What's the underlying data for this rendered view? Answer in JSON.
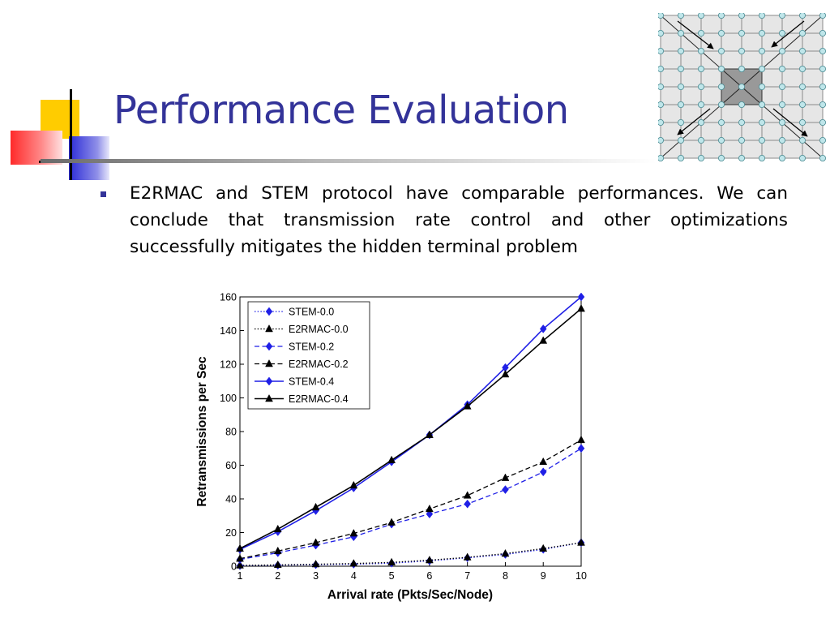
{
  "slide": {
    "title": "Performance Evaluation",
    "bullets": [
      "E2RMAC and STEM protocol have comparable performances. We can conclude that transmission rate control and other optimizations successfully mitigates the hidden terminal problem"
    ]
  },
  "colors": {
    "title": "#333399",
    "bullet": "#333399",
    "deco_yellow": "#FFCC00",
    "deco_red": "#FF3333",
    "deco_blue": "#3333CC",
    "series_blue": "#1f1fe6",
    "series_black": "#000000"
  },
  "grid_figure": {
    "description_icon": "network-grid-diagram-icon",
    "rows": 9,
    "cols": 9
  },
  "chart_data": {
    "type": "line",
    "xlabel": "Arrival rate (Pkts/Sec/Node)",
    "ylabel": "Retransmissions per Sec",
    "x": [
      1,
      2,
      3,
      4,
      5,
      6,
      7,
      8,
      9,
      10
    ],
    "xlim": [
      1,
      10
    ],
    "ylim": [
      0,
      160
    ],
    "yticks": [
      0,
      20,
      40,
      60,
      80,
      100,
      120,
      140,
      160
    ],
    "grid": false,
    "legend_position": "top-left",
    "series": [
      {
        "name": "STEM-0.0",
        "color": "#1f1fe6",
        "dash": "dotted",
        "marker": "diamond",
        "values": [
          0.3,
          0.6,
          0.9,
          1.2,
          1.8,
          3.2,
          5,
          7,
          10,
          14
        ]
      },
      {
        "name": "E2RMAC-0.0",
        "color": "#000000",
        "dash": "dotted",
        "marker": "triangle",
        "values": [
          0.5,
          0.8,
          1.2,
          1.6,
          2.3,
          3.6,
          5.3,
          7.5,
          10.5,
          14
        ]
      },
      {
        "name": "STEM-0.2",
        "color": "#1f1fe6",
        "dash": "dashed",
        "marker": "diamond",
        "values": [
          4,
          8,
          12.5,
          17.5,
          25,
          31,
          37,
          45.5,
          56,
          70
        ]
      },
      {
        "name": "E2RMAC-0.2",
        "color": "#000000",
        "dash": "dashed",
        "marker": "triangle",
        "values": [
          4.5,
          9,
          14,
          19.5,
          26,
          34,
          42,
          52.5,
          62,
          75
        ]
      },
      {
        "name": "STEM-0.4",
        "color": "#1f1fe6",
        "dash": "solid",
        "marker": "diamond",
        "values": [
          10,
          20.5,
          33,
          46.5,
          62,
          78,
          96,
          118,
          141,
          160
        ]
      },
      {
        "name": "E2RMAC-0.4",
        "color": "#000000",
        "dash": "solid",
        "marker": "triangle",
        "values": [
          10.5,
          22,
          35,
          48,
          63,
          78,
          95,
          114,
          134,
          153
        ]
      }
    ]
  }
}
